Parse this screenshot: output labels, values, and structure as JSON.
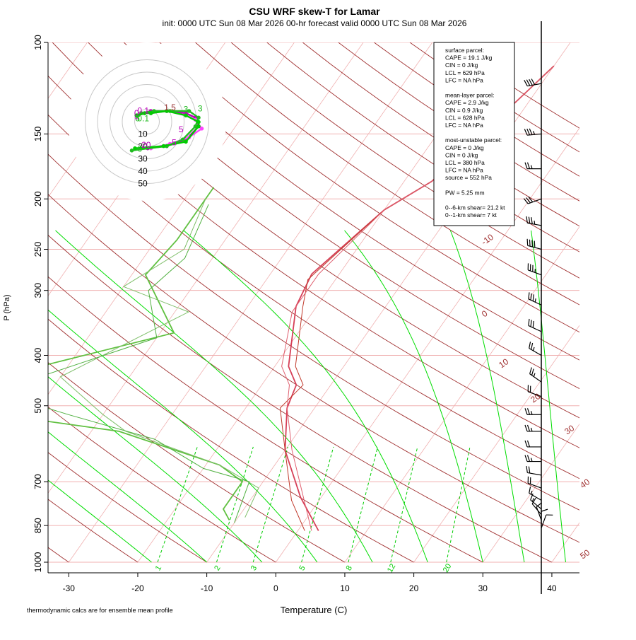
{
  "title": "CSU WRF skew-T for Lamar",
  "subtitle": "init: 0000 UTC Sun 08 Mar 2026     00-hr forecast valid 0000 UTC Sun 08 Mar 2026",
  "footnote": "thermodynamic calcs are for ensemble mean profile",
  "chart_data": {
    "type": "line",
    "xlabel": "Temperature (C)",
    "ylabel": "P (hPa)",
    "x_ticks": [
      "-30",
      "-20",
      "-10",
      "0",
      "10",
      "20",
      "30",
      "40"
    ],
    "y_ticks": [
      "100",
      "150",
      "200",
      "250",
      "300",
      "400",
      "500",
      "700",
      "850",
      "1000"
    ],
    "xlim": [
      -33,
      44
    ],
    "ylim": [
      1000,
      100
    ],
    "isotherms": [
      -10,
      0,
      10,
      20,
      30,
      40,
      50
    ],
    "isotherm_labels": [
      "-10",
      "0",
      "10",
      "20",
      "30",
      "40",
      "50"
    ],
    "mixing_ratio_labels": [
      "1",
      "2",
      "3",
      "5",
      "8",
      "12",
      "20"
    ],
    "series": [
      {
        "role": "temperature-ensemble-mean",
        "color": "#d64058",
        "points": [
          [
            -10,
            111
          ],
          [
            -16,
            185
          ],
          [
            -20,
            210
          ],
          [
            -24,
            279
          ],
          [
            -23,
            322
          ],
          [
            -18,
            420
          ],
          [
            -15,
            456
          ],
          [
            -14,
            505
          ],
          [
            -10,
            609
          ],
          [
            -3,
            750
          ],
          [
            3,
            870
          ]
        ]
      },
      {
        "role": "temperature-member-a",
        "color": "#c0392b",
        "points": [
          [
            -10,
            111
          ],
          [
            -16,
            185
          ],
          [
            -20,
            210
          ],
          [
            -24,
            286
          ],
          [
            -22,
            322
          ],
          [
            -17,
            420
          ],
          [
            -14,
            456
          ],
          [
            -15,
            505
          ],
          [
            -10,
            609
          ],
          [
            -4,
            760
          ],
          [
            1,
            870
          ]
        ]
      },
      {
        "role": "temperature-member-b",
        "color": "#e06070",
        "points": [
          [
            -10,
            111
          ],
          [
            -16,
            185
          ],
          [
            -20,
            210
          ],
          [
            -23,
            279
          ],
          [
            -23,
            330
          ],
          [
            -19,
            420
          ],
          [
            -16,
            456
          ],
          [
            -14,
            505
          ],
          [
            -9,
            609
          ],
          [
            -3,
            740
          ],
          [
            2,
            870
          ]
        ]
      },
      {
        "role": "dewpoint-ensemble-mean",
        "color": "#60c040",
        "points": [
          [
            -47,
            190
          ],
          [
            -47,
            240
          ],
          [
            -48,
            280
          ],
          [
            -38,
            362
          ],
          [
            -65,
            465
          ],
          [
            -55,
            520
          ],
          [
            -36,
            560
          ],
          [
            -18,
            650
          ],
          [
            -13,
            700
          ],
          [
            -13,
            790
          ],
          [
            -11,
            830
          ]
        ]
      },
      {
        "role": "dewpoint-member-a",
        "color": "#7fbf6a",
        "points": [
          [
            -47,
            200
          ],
          [
            -45,
            250
          ],
          [
            -50,
            295
          ],
          [
            -38,
            330
          ],
          [
            -50,
            440
          ],
          [
            -40,
            520
          ],
          [
            -35,
            560
          ],
          [
            -18,
            650
          ],
          [
            -10,
            720
          ],
          [
            -9,
            820
          ]
        ]
      },
      {
        "role": "dewpoint-member-b",
        "color": "#50b040",
        "points": [
          [
            -46,
            205
          ],
          [
            -44,
            260
          ],
          [
            -46,
            300
          ],
          [
            -40,
            370
          ],
          [
            -58,
            470
          ],
          [
            -45,
            520
          ],
          [
            -30,
            580
          ],
          [
            -20,
            660
          ],
          [
            -12,
            700
          ],
          [
            -10,
            840
          ]
        ]
      }
    ],
    "hodograph": {
      "ring_labels": [
        "10",
        "20",
        "30",
        "40",
        "50"
      ],
      "traces": [
        {
          "color": "#bb00bb",
          "points": [
            [
              -1.5,
              -2
            ],
            [
              0,
              -1
            ],
            [
              3,
              0
            ],
            [
              8,
              0
            ],
            [
              14,
              -1
            ],
            [
              17,
              -3
            ],
            [
              18,
              -7
            ],
            [
              14,
              -13
            ],
            [
              8,
              -16
            ],
            [
              2,
              -17
            ]
          ]
        },
        {
          "color": "#ff44ff",
          "points": [
            [
              -1.5,
              -3
            ],
            [
              0,
              -1
            ],
            [
              3,
              -1
            ],
            [
              8,
              0
            ],
            [
              14,
              -2
            ],
            [
              17,
              -4
            ],
            [
              19,
              -8
            ],
            [
              15,
              -12
            ],
            [
              9,
              -15
            ],
            [
              3,
              -17
            ]
          ]
        },
        {
          "color": "#22bb22",
          "points": [
            [
              -1,
              -2
            ],
            [
              0,
              -1
            ],
            [
              4,
              0
            ],
            [
              9,
              0
            ],
            [
              15,
              0
            ],
            [
              18,
              -3
            ],
            [
              17,
              -7
            ],
            [
              13,
              -13
            ],
            [
              8,
              -16
            ],
            [
              -3,
              -18
            ]
          ]
        },
        {
          "color": "#00cc00",
          "points": [
            [
              -1.5,
              -2
            ],
            [
              1,
              -1
            ],
            [
              3,
              -1
            ],
            [
              8,
              0
            ],
            [
              14,
              -2
            ],
            [
              18,
              -5
            ],
            [
              18,
              -7
            ],
            [
              14,
              -14
            ],
            [
              7,
              -16
            ],
            [
              -2,
              -17
            ]
          ]
        }
      ],
      "labels": [
        {
          "text": "3",
          "u": 18.5,
          "v": -0.2,
          "color": "#22bb22"
        },
        {
          "text": "1.5",
          "u": 9,
          "v": 0.3,
          "color": "#993333"
        },
        {
          "text": "3",
          "u": 14,
          "v": -0.5,
          "color": "#22bb22"
        },
        {
          "text": "0.1",
          "u": 0.6,
          "v": -1.2,
          "color": "#bb00bb"
        },
        {
          "text": "0",
          "u": -1.5,
          "v": -2.3,
          "color": "#bb00bb"
        },
        {
          "text": "6",
          "u": -1.2,
          "v": -4.6,
          "color": "#22bb22"
        },
        {
          "text": "0.1",
          "u": 0.6,
          "v": -4.6,
          "color": "#22bb22"
        },
        {
          "text": "5",
          "u": 12.5,
          "v": -9.7,
          "color": "#bb00bb"
        },
        {
          "text": "5",
          "u": 10.3,
          "v": -15.6,
          "color": "#bb00bb"
        },
        {
          "text": "20",
          "u": 1.5,
          "v": -16.8,
          "color": "#bb00bb"
        },
        {
          "text": "6",
          "u": -0.5,
          "v": -18.5,
          "color": "#22bb22"
        }
      ]
    },
    "wind_barbs": [
      {
        "p": 120,
        "speed": 40,
        "dir": 260
      },
      {
        "p": 150,
        "speed": 35,
        "dir": 265
      },
      {
        "p": 175,
        "speed": 25,
        "dir": 270
      },
      {
        "p": 200,
        "speed": 30,
        "dir": 250
      },
      {
        "p": 225,
        "speed": 35,
        "dir": 280
      },
      {
        "p": 250,
        "speed": 40,
        "dir": 285
      },
      {
        "p": 280,
        "speed": 35,
        "dir": 290
      },
      {
        "p": 320,
        "speed": 35,
        "dir": 295
      },
      {
        "p": 360,
        "speed": 30,
        "dir": 295
      },
      {
        "p": 400,
        "speed": 25,
        "dir": 300
      },
      {
        "p": 450,
        "speed": 25,
        "dir": 305
      },
      {
        "p": 480,
        "speed": 20,
        "dir": 290
      },
      {
        "p": 520,
        "speed": 25,
        "dir": 270
      },
      {
        "p": 560,
        "speed": 25,
        "dir": 270
      },
      {
        "p": 600,
        "speed": 20,
        "dir": 270
      },
      {
        "p": 640,
        "speed": 25,
        "dir": 270
      },
      {
        "p": 680,
        "speed": 20,
        "dir": 280
      },
      {
        "p": 720,
        "speed": 20,
        "dir": 290
      },
      {
        "p": 760,
        "speed": 15,
        "dir": 300
      },
      {
        "p": 790,
        "speed": 15,
        "dir": 310
      },
      {
        "p": 810,
        "speed": 10,
        "dir": 320
      },
      {
        "p": 830,
        "speed": 10,
        "dir": 340
      },
      {
        "p": 850,
        "speed": 10,
        "dir": 0
      },
      {
        "p": 860,
        "speed": 10,
        "dir": 20
      }
    ]
  },
  "legend": {
    "lines": [
      "surface parcel:",
      "CAPE = 19.1  J/kg",
      "CIN = 0 J/kg",
      "LCL = 629 hPa",
      "LFC = NA hPa",
      "",
      "mean-layer parcel:",
      "CAPE = 2.9 J/kg",
      "CIN = 0.9 J/kg",
      "LCL = 628 hPa",
      "LFC = NA hPa",
      "",
      "most-unstable parcel:",
      "CAPE = 0 J/kg",
      "CIN = 0 J/kg",
      "LCL = 380 hPa",
      "LFC = NA hPa",
      "source = 552 hPa",
      "",
      "PW =  5.25 mm",
      "",
      "0--6-km shear= 21.2 kt",
      "0--1-km shear= 7 kt"
    ]
  },
  "colors": {
    "isobar": "#f0b0b0",
    "isotherm": "#f0b0b0",
    "dry_adiabat": "#a03030",
    "moist_adiabat": "#00dd00",
    "mixing_ratio": "#00cc00",
    "axis": "#000000",
    "grid_ring": "#c8c8c8"
  }
}
